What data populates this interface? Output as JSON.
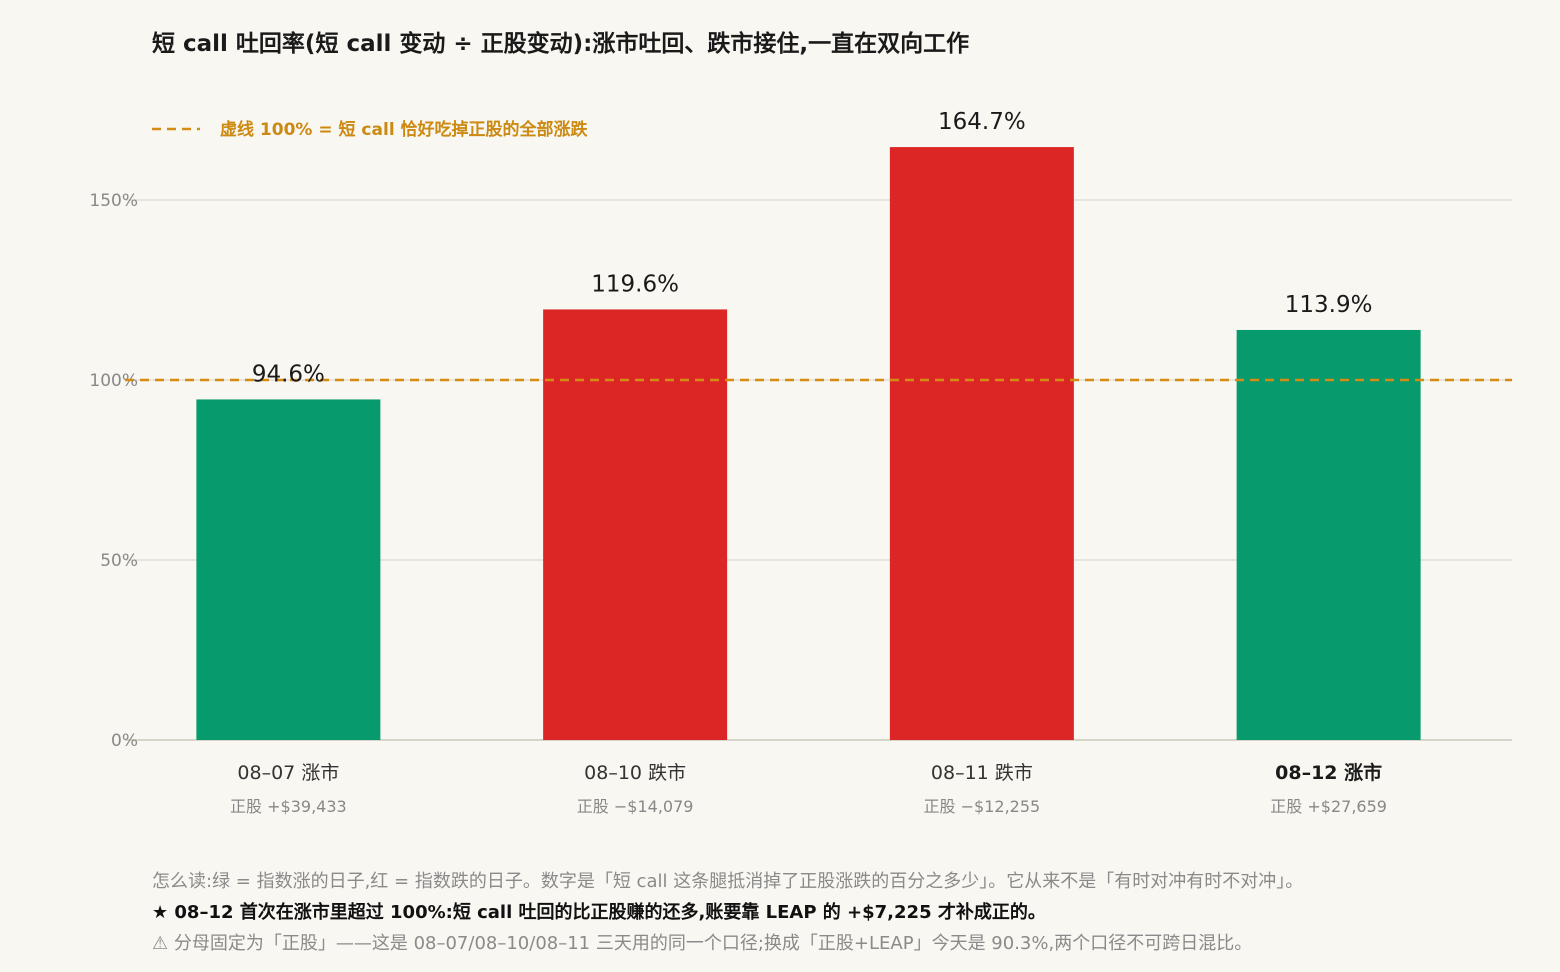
{
  "chart_data": {
    "type": "bar",
    "title": "短 call 吐回率(短 call 变动 ÷ 正股变动):涨市吐回、跌市接住,一直在双向工作",
    "categories": [
      "08–07 涨市",
      "08–10 跌市",
      "08–11 跌市",
      "08–12 涨市"
    ],
    "sublabels": [
      "正股 +$39,433",
      "正股 −$14,079",
      "正股 −$12,255",
      "正股 +$27,659"
    ],
    "values": [
      94.6,
      119.6,
      164.7,
      113.9
    ],
    "value_labels": [
      "94.6%",
      "119.6%",
      "164.7%",
      "113.9%"
    ],
    "direction": [
      "up",
      "down",
      "down",
      "up"
    ],
    "highlight_index": 3,
    "ylim": [
      0,
      175
    ],
    "yticks": [
      0,
      50,
      100,
      150
    ],
    "ytick_labels": [
      "0%",
      "50%",
      "100%",
      "150%"
    ],
    "grid": true,
    "reference_line": {
      "value": 100,
      "label": "虚线 100% = 短 call 恰好吃掉正股的全部涨跌"
    },
    "colors": {
      "up": "#069a6c",
      "down": "#dc2626",
      "reference": "#d48c13"
    }
  },
  "notes": {
    "how_to_read": "怎么读:绿 = 指数涨的日子,红 = 指数跌的日子。数字是「短 call 这条腿抵消掉了正股涨跌的百分之多少」。它从来不是「有时对冲有时不对冲」。",
    "highlight": "★ 08–12 首次在涨市里超过 100%:短 call 吐回的比正股赚的还多,账要靠 LEAP 的 +$7,225 才补成正的。",
    "warning": "⚠ 分母固定为「正股」——这是 08–07/08–10/08–11 三天用的同一个口径;换成「正股+LEAP」今天是 90.3%,两个口径不可跨日混比。"
  }
}
